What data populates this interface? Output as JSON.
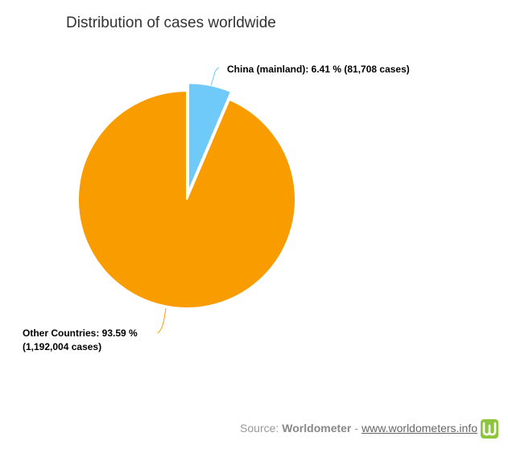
{
  "chart_data": {
    "type": "pie",
    "title": "Distribution of cases worldwide",
    "categories": [
      "China (mainland)",
      "Other Countries"
    ],
    "values": [
      6.41,
      93.59
    ],
    "labels": [
      "China (mainland): 6.41 % (81,708 cases)",
      "Other Countries: 93.59 % (1,192,004 cases)"
    ],
    "colors": [
      "#6fcaf9",
      "#f99c00"
    ]
  },
  "source": {
    "prefix": "Source:",
    "name": "Worldometer",
    "separator": "-",
    "url": "www.worldometers.info"
  }
}
